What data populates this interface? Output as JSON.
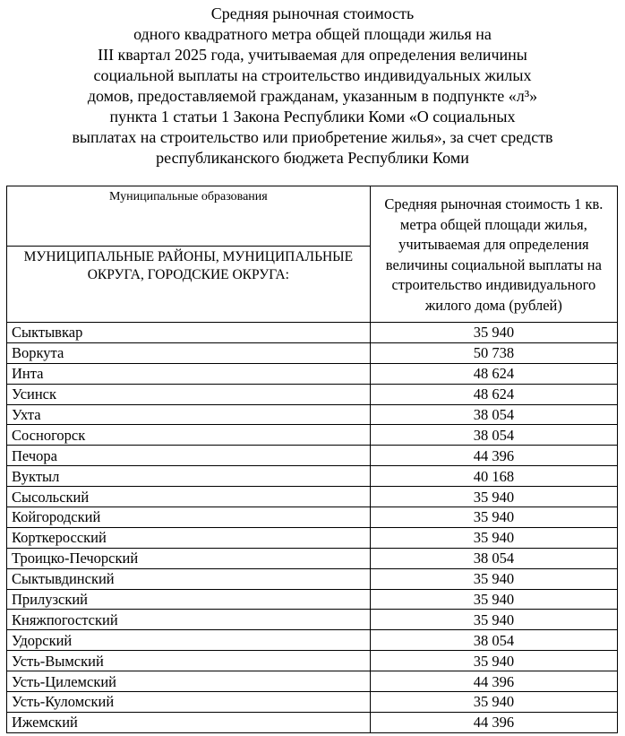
{
  "title_lines": [
    "Средняя рыночная стоимость",
    "одного квадратного метра общей площади жилья на",
    "III квартал 2025 года, учитываемая для определения величины",
    "социальной выплаты на строительство индивидуальных жилых",
    "домов, предоставляемой гражданам, указанным в подпункте «л³»",
    "пункта 1 статьи 1 Закона Республики Коми «О социальных",
    "выплатах на строительство или приобретение жилья», за счет средств",
    "республиканского бюджета Республики Коми"
  ],
  "table": {
    "header_col1": "Муниципальные образования",
    "header_group": "МУНИЦИПАЛЬНЫЕ РАЙОНЫ, МУНИЦИПАЛЬНЫЕ ОКРУГА, ГОРОДСКИЕ ОКРУГА:",
    "header_col2": "Средняя рыночная стоимость 1 кв. метра общей площади жилья, учитываемая для определения величины социальной выплаты на строительство индивидуального жилого дома (рублей)",
    "rows": [
      {
        "name": "Сыктывкар",
        "value": "35 940"
      },
      {
        "name": "Воркута",
        "value": "50 738"
      },
      {
        "name": "Инта",
        "value": "48 624"
      },
      {
        "name": "Усинск",
        "value": "48 624"
      },
      {
        "name": "Ухта",
        "value": "38 054"
      },
      {
        "name": "Сосногорск",
        "value": "38 054"
      },
      {
        "name": "Печора",
        "value": "44 396"
      },
      {
        "name": "Вуктыл",
        "value": "40 168"
      },
      {
        "name": "Сысольский",
        "value": "35 940"
      },
      {
        "name": "Койгородский",
        "value": "35 940"
      },
      {
        "name": "Корткеросский",
        "value": "35 940"
      },
      {
        "name": "Троицко-Печорский",
        "value": "38 054"
      },
      {
        "name": "Сыктывдинский",
        "value": "35 940"
      },
      {
        "name": "Прилузский",
        "value": "35 940"
      },
      {
        "name": "Княжпогостский",
        "value": "35 940"
      },
      {
        "name": "Удорский",
        "value": "38 054"
      },
      {
        "name": "Усть-Вымский",
        "value": "35 940"
      },
      {
        "name": "Усть-Цилемский",
        "value": "44 396"
      },
      {
        "name": "Усть-Куломский",
        "value": "35 940"
      },
      {
        "name": "Ижемский",
        "value": "44 396"
      }
    ]
  }
}
